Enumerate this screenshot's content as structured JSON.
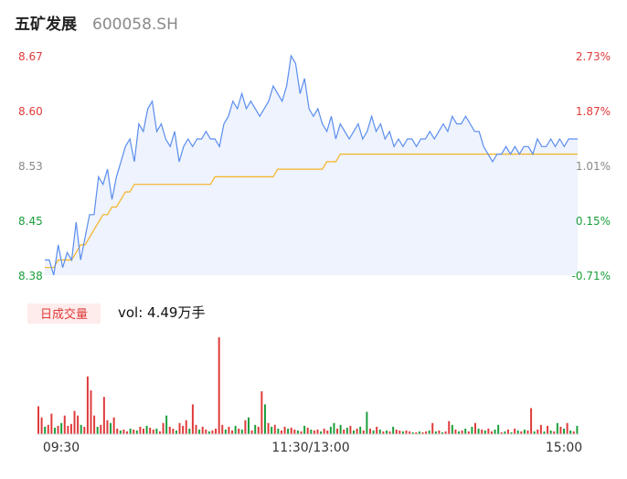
{
  "header": {
    "name": "五矿发展",
    "code": "600058.SH"
  },
  "colors": {
    "price_line": "#5b8def",
    "avg_line": "#f5b325",
    "area": "#eef3fd",
    "up": "#e03a3a",
    "down": "#1a9e3c",
    "flat": "#888888"
  },
  "volume": {
    "tag": "日成交量",
    "label": "vol: 4.49万手"
  },
  "chart_data": {
    "type": "line",
    "price_axis": {
      "ticks": [
        "8.67",
        "8.60",
        "8.53",
        "8.45",
        "8.38"
      ],
      "range": [
        8.38,
        8.67
      ]
    },
    "pct_axis": {
      "ticks": [
        "2.73%",
        "1.87%",
        "1.01%",
        "0.15%",
        "-0.71%"
      ]
    },
    "time_labels": [
      "09:30",
      "11:30/13:00",
      "15:00"
    ],
    "series": [
      {
        "values": [
          8.4,
          8.4,
          8.38,
          8.42,
          8.39,
          8.41,
          8.4,
          8.45,
          8.4,
          8.43,
          8.46,
          8.46,
          8.51,
          8.5,
          8.52,
          8.48,
          8.51,
          8.53,
          8.55,
          8.56,
          8.53,
          8.58,
          8.57,
          8.6,
          8.61,
          8.57,
          8.58,
          8.56,
          8.55,
          8.57,
          8.53,
          8.55,
          8.56,
          8.55,
          8.56,
          8.56,
          8.57,
          8.56,
          8.56,
          8.55,
          8.58,
          8.59,
          8.61,
          8.6,
          8.62,
          8.6,
          8.61,
          8.6,
          8.59,
          8.6,
          8.61,
          8.63,
          8.62,
          8.61,
          8.63,
          8.67,
          8.66,
          8.62,
          8.64,
          8.6,
          8.59,
          8.6,
          8.58,
          8.57,
          8.59,
          8.56,
          8.58,
          8.57,
          8.56,
          8.57,
          8.58,
          8.56,
          8.57,
          8.59,
          8.57,
          8.58,
          8.56,
          8.57,
          8.55,
          8.56,
          8.55,
          8.56,
          8.56,
          8.55,
          8.56,
          8.56,
          8.57,
          8.56,
          8.57,
          8.58,
          8.57,
          8.59,
          8.58,
          8.58,
          8.59,
          8.58,
          8.57,
          8.57,
          8.55,
          8.54,
          8.53,
          8.54,
          8.54,
          8.55,
          8.54,
          8.55,
          8.54,
          8.55,
          8.55,
          8.54,
          8.56,
          8.55,
          8.55,
          8.56,
          8.55,
          8.56,
          8.55,
          8.56,
          8.56,
          8.56
        ]
      },
      {
        "values": [
          8.39,
          8.39,
          8.39,
          8.4,
          8.4,
          8.4,
          8.4,
          8.41,
          8.42,
          8.42,
          8.43,
          8.44,
          8.45,
          8.46,
          8.46,
          8.47,
          8.47,
          8.48,
          8.49,
          8.49,
          8.5,
          8.5,
          8.5,
          8.5,
          8.5,
          8.5,
          8.5,
          8.5,
          8.5,
          8.5,
          8.5,
          8.5,
          8.5,
          8.5,
          8.5,
          8.5,
          8.5,
          8.5,
          8.51,
          8.51,
          8.51,
          8.51,
          8.51,
          8.51,
          8.51,
          8.51,
          8.51,
          8.51,
          8.51,
          8.51,
          8.51,
          8.51,
          8.52,
          8.52,
          8.52,
          8.52,
          8.52,
          8.52,
          8.52,
          8.52,
          8.52,
          8.52,
          8.52,
          8.53,
          8.53,
          8.53,
          8.54,
          8.54,
          8.54,
          8.54,
          8.54,
          8.54,
          8.54,
          8.54,
          8.54,
          8.54,
          8.54,
          8.54,
          8.54,
          8.54,
          8.54,
          8.54,
          8.54,
          8.54,
          8.54,
          8.54,
          8.54,
          8.54,
          8.54,
          8.54,
          8.54,
          8.54,
          8.54,
          8.54,
          8.54,
          8.54,
          8.54,
          8.54,
          8.54,
          8.54,
          8.54,
          8.54,
          8.54,
          8.54,
          8.54,
          8.54,
          8.54,
          8.54,
          8.54,
          8.54,
          8.54,
          8.54,
          8.54,
          8.54,
          8.54,
          8.54,
          8.54,
          8.54,
          8.54,
          8.54
        ]
      }
    ],
    "volume_bars": [
      {
        "v": 30,
        "d": "up"
      },
      {
        "v": 18,
        "d": "up"
      },
      {
        "v": 8,
        "d": "down"
      },
      {
        "v": 10,
        "d": "up"
      },
      {
        "v": 22,
        "d": "up"
      },
      {
        "v": 7,
        "d": "down"
      },
      {
        "v": 9,
        "d": "up"
      },
      {
        "v": 12,
        "d": "down"
      },
      {
        "v": 20,
        "d": "up"
      },
      {
        "v": 9,
        "d": "up"
      },
      {
        "v": 11,
        "d": "up"
      },
      {
        "v": 25,
        "d": "up"
      },
      {
        "v": 20,
        "d": "up"
      },
      {
        "v": 10,
        "d": "down"
      },
      {
        "v": 8,
        "d": "up"
      },
      {
        "v": 62,
        "d": "up"
      },
      {
        "v": 47,
        "d": "up"
      },
      {
        "v": 20,
        "d": "up"
      },
      {
        "v": 8,
        "d": "down"
      },
      {
        "v": 10,
        "d": "up"
      },
      {
        "v": 40,
        "d": "up"
      },
      {
        "v": 15,
        "d": "up"
      },
      {
        "v": 12,
        "d": "down"
      },
      {
        "v": 18,
        "d": "up"
      },
      {
        "v": 6,
        "d": "up"
      },
      {
        "v": 4,
        "d": "down"
      },
      {
        "v": 5,
        "d": "up"
      },
      {
        "v": 3,
        "d": "up"
      },
      {
        "v": 6,
        "d": "down"
      },
      {
        "v": 5,
        "d": "up"
      },
      {
        "v": 4,
        "d": "down"
      },
      {
        "v": 8,
        "d": "up"
      },
      {
        "v": 6,
        "d": "up"
      },
      {
        "v": 9,
        "d": "down"
      },
      {
        "v": 7,
        "d": "up"
      },
      {
        "v": 5,
        "d": "up"
      },
      {
        "v": 6,
        "d": "down"
      },
      {
        "v": 3,
        "d": "up"
      },
      {
        "v": 12,
        "d": "up"
      },
      {
        "v": 20,
        "d": "down"
      },
      {
        "v": 8,
        "d": "up"
      },
      {
        "v": 6,
        "d": "up"
      },
      {
        "v": 4,
        "d": "down"
      },
      {
        "v": 12,
        "d": "up"
      },
      {
        "v": 9,
        "d": "up"
      },
      {
        "v": 15,
        "d": "up"
      },
      {
        "v": 6,
        "d": "down"
      },
      {
        "v": 32,
        "d": "up"
      },
      {
        "v": 10,
        "d": "up"
      },
      {
        "v": 5,
        "d": "down"
      },
      {
        "v": 8,
        "d": "up"
      },
      {
        "v": 5,
        "d": "up"
      },
      {
        "v": 3,
        "d": "down"
      },
      {
        "v": 4,
        "d": "up"
      },
      {
        "v": 6,
        "d": "up"
      },
      {
        "v": 104,
        "d": "up"
      },
      {
        "v": 10,
        "d": "up"
      },
      {
        "v": 5,
        "d": "down"
      },
      {
        "v": 8,
        "d": "up"
      },
      {
        "v": 4,
        "d": "up"
      },
      {
        "v": 9,
        "d": "down"
      },
      {
        "v": 6,
        "d": "up"
      },
      {
        "v": 5,
        "d": "down"
      },
      {
        "v": 15,
        "d": "up"
      },
      {
        "v": 18,
        "d": "down"
      },
      {
        "v": 4,
        "d": "up"
      },
      {
        "v": 10,
        "d": "down"
      },
      {
        "v": 8,
        "d": "up"
      },
      {
        "v": 46,
        "d": "up"
      },
      {
        "v": 32,
        "d": "down"
      },
      {
        "v": 12,
        "d": "up"
      },
      {
        "v": 8,
        "d": "down"
      },
      {
        "v": 10,
        "d": "up"
      },
      {
        "v": 6,
        "d": "down"
      },
      {
        "v": 4,
        "d": "up"
      },
      {
        "v": 8,
        "d": "up"
      },
      {
        "v": 6,
        "d": "down"
      },
      {
        "v": 7,
        "d": "up"
      },
      {
        "v": 5,
        "d": "up"
      },
      {
        "v": 4,
        "d": "down"
      },
      {
        "v": 3,
        "d": "up"
      },
      {
        "v": 9,
        "d": "down"
      },
      {
        "v": 7,
        "d": "up"
      },
      {
        "v": 5,
        "d": "down"
      },
      {
        "v": 4,
        "d": "up"
      },
      {
        "v": 5,
        "d": "up"
      },
      {
        "v": 3,
        "d": "down"
      },
      {
        "v": 6,
        "d": "up"
      },
      {
        "v": 4,
        "d": "up"
      },
      {
        "v": 8,
        "d": "down"
      },
      {
        "v": 12,
        "d": "down"
      },
      {
        "v": 6,
        "d": "up"
      },
      {
        "v": 10,
        "d": "down"
      },
      {
        "v": 5,
        "d": "up"
      },
      {
        "v": 7,
        "d": "down"
      },
      {
        "v": 9,
        "d": "up"
      },
      {
        "v": 4,
        "d": "down"
      },
      {
        "v": 6,
        "d": "up"
      },
      {
        "v": 8,
        "d": "down"
      },
      {
        "v": 4,
        "d": "up"
      },
      {
        "v": 24,
        "d": "down"
      },
      {
        "v": 6,
        "d": "up"
      },
      {
        "v": 4,
        "d": "down"
      },
      {
        "v": 8,
        "d": "up"
      },
      {
        "v": 5,
        "d": "down"
      },
      {
        "v": 3,
        "d": "up"
      },
      {
        "v": 4,
        "d": "down"
      },
      {
        "v": 3,
        "d": "up"
      },
      {
        "v": 8,
        "d": "down"
      },
      {
        "v": 5,
        "d": "up"
      },
      {
        "v": 4,
        "d": "up"
      },
      {
        "v": 3,
        "d": "down"
      },
      {
        "v": 4,
        "d": "up"
      },
      {
        "v": 3,
        "d": "up"
      },
      {
        "v": 2,
        "d": "down"
      },
      {
        "v": 2,
        "d": "up"
      },
      {
        "v": 3,
        "d": "down"
      },
      {
        "v": 2,
        "d": "up"
      },
      {
        "v": 3,
        "d": "up"
      },
      {
        "v": 4,
        "d": "down"
      },
      {
        "v": 12,
        "d": "up"
      },
      {
        "v": 3,
        "d": "down"
      },
      {
        "v": 4,
        "d": "up"
      },
      {
        "v": 2,
        "d": "down"
      },
      {
        "v": 3,
        "d": "up"
      },
      {
        "v": 14,
        "d": "up"
      },
      {
        "v": 10,
        "d": "down"
      },
      {
        "v": 5,
        "d": "up"
      },
      {
        "v": 3,
        "d": "down"
      },
      {
        "v": 4,
        "d": "up"
      },
      {
        "v": 6,
        "d": "down"
      },
      {
        "v": 3,
        "d": "up"
      },
      {
        "v": 8,
        "d": "down"
      },
      {
        "v": 12,
        "d": "up"
      },
      {
        "v": 6,
        "d": "down"
      },
      {
        "v": 5,
        "d": "up"
      },
      {
        "v": 4,
        "d": "down"
      },
      {
        "v": 6,
        "d": "up"
      },
      {
        "v": 3,
        "d": "up"
      },
      {
        "v": 5,
        "d": "down"
      },
      {
        "v": 10,
        "d": "down"
      },
      {
        "v": 2,
        "d": "up"
      },
      {
        "v": 3,
        "d": "down"
      },
      {
        "v": 5,
        "d": "up"
      },
      {
        "v": 2,
        "d": "down"
      },
      {
        "v": 6,
        "d": "up"
      },
      {
        "v": 4,
        "d": "down"
      },
      {
        "v": 3,
        "d": "up"
      },
      {
        "v": 5,
        "d": "down"
      },
      {
        "v": 4,
        "d": "up"
      },
      {
        "v": 28,
        "d": "up"
      },
      {
        "v": 3,
        "d": "down"
      },
      {
        "v": 5,
        "d": "up"
      },
      {
        "v": 10,
        "d": "up"
      },
      {
        "v": 3,
        "d": "down"
      },
      {
        "v": 9,
        "d": "up"
      },
      {
        "v": 4,
        "d": "down"
      },
      {
        "v": 3,
        "d": "up"
      },
      {
        "v": 12,
        "d": "down"
      },
      {
        "v": 8,
        "d": "up"
      },
      {
        "v": 6,
        "d": "down"
      },
      {
        "v": 12,
        "d": "up"
      },
      {
        "v": 4,
        "d": "down"
      },
      {
        "v": 3,
        "d": "up"
      },
      {
        "v": 9,
        "d": "down"
      }
    ]
  }
}
